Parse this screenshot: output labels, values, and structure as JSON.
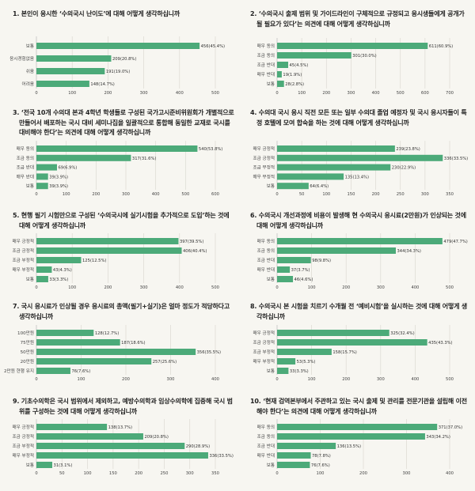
{
  "colors": {
    "bar": "#4caa79",
    "grid": "#dcdad2",
    "background": "#f7f6f1"
  },
  "chart_data": [
    {
      "type": "bar",
      "orientation": "horizontal",
      "title": "1. 본인이 응시한 ‘수의국시 난이도’에 대해 어떻게 생각하십니까",
      "categories": [
        "보통",
        "응시경험없음",
        "쉬움",
        "어려움"
      ],
      "values": [
        456,
        209,
        191,
        148
      ],
      "percents": [
        "45.4",
        "20.8",
        "19.0",
        "14.7"
      ],
      "xlim": [
        0,
        500
      ],
      "xticks": [
        0,
        100,
        200,
        300,
        400,
        500
      ],
      "grid": true
    },
    {
      "type": "bar",
      "orientation": "horizontal",
      "title": "2. ‘수의국시 출제 범위 및 가이드라인이 구체적으로 규정되고 응시생들에게 공개가 될 필요가 있다’는 의견에 대해 어떻게 생각하십니까",
      "categories": [
        "매우 동의",
        "조금 동의",
        "조금 반대",
        "매우 반대",
        "보통"
      ],
      "values": [
        611,
        301,
        45,
        19,
        28
      ],
      "percents": [
        "60.9",
        "30.0",
        "4.5",
        "1.9",
        "2.8"
      ],
      "xlim": [
        0,
        700
      ],
      "xticks": [
        0,
        100,
        200,
        300,
        400,
        500,
        600,
        700
      ],
      "grid": true
    },
    {
      "type": "bar",
      "orientation": "horizontal",
      "title": "3. ‘전국 10개 수의대 본과 4학년 학생들로 구성된 국가고시준비위원회가 개별적으로 만들어서 배포하는 국시 대비 세미나집을 일괄적으로 통합해 동일한 교재로 국시를 대비해야 한다’는 의견에 대해 어떻게 생각하십니까",
      "categories": [
        "매우 동의",
        "조금 동의",
        "조금 반대",
        "매우 반대",
        "보통"
      ],
      "values": [
        540,
        317,
        69,
        39,
        39
      ],
      "percents": [
        "53.8",
        "31.6",
        "6.9",
        "3.9",
        "3.9"
      ],
      "xlim": [
        0,
        600
      ],
      "xticks": [
        0,
        100,
        200,
        300,
        400,
        500,
        600
      ],
      "grid": true
    },
    {
      "type": "bar",
      "orientation": "horizontal",
      "title": "4. 수의대 국시 응시 직전 모든 또는 일부 수의대 졸업 예정자 및 국시 응시자들이 특정 호텔에 모여 합숙을 하는 것에 대해 어떻게 생각하십니까",
      "categories": [
        "매우 긍정적",
        "조금 긍정적",
        "조금 부정적",
        "매우 부정적",
        "보통"
      ],
      "values": [
        239,
        336,
        230,
        135,
        64
      ],
      "percents": [
        "23.8",
        "33.5",
        "22.9",
        "13.4",
        "6.4"
      ],
      "xlim": [
        0,
        350
      ],
      "xticks": [
        0,
        50,
        100,
        150,
        200,
        250,
        300,
        350
      ],
      "grid": true
    },
    {
      "type": "bar",
      "orientation": "horizontal",
      "title": "5. 현행 필기 시험만으로 구성된 ‘수의국시에 실기시험을 추가적으로 도입’하는 것에 대해 어떻게 생각하십니까",
      "categories": [
        "매우 긍정적",
        "조금 긍정적",
        "조금 부정적",
        "매우 부정적",
        "보통"
      ],
      "values": [
        397,
        406,
        125,
        43,
        33
      ],
      "percents": [
        "39.5",
        "40.4",
        "12.5",
        "4.3",
        "3.3"
      ],
      "xlim": [
        0,
        500
      ],
      "xticks": [
        0,
        100,
        200,
        300,
        400,
        500
      ],
      "grid": true
    },
    {
      "type": "bar",
      "orientation": "horizontal",
      "title": "6. 수의국시 개선과정에 비용이 발생해 현 수의국시 응시료(2만원)가 인상되는 것에 대해 어떻게 생각하십니까",
      "categories": [
        "매우 동의",
        "조금 동의",
        "조금 반대",
        "매우 반대",
        "보통"
      ],
      "values": [
        479,
        344,
        98,
        37,
        46
      ],
      "percents": [
        "47.7",
        "34.3",
        "9.8",
        "3.7",
        "4.6"
      ],
      "xlim": [
        0,
        500
      ],
      "xticks": [
        0,
        100,
        200,
        300,
        400,
        500
      ],
      "grid": true
    },
    {
      "type": "bar",
      "orientation": "horizontal",
      "title": "7. 국시 응시료가 인상될 경우 응시료의 총액(필기+실기)은 얼마 정도가 적당하다고 생각하십니까",
      "categories": [
        "100만원",
        "75만원",
        "50만원",
        "20만원",
        "2만원 현행 유지"
      ],
      "values": [
        128,
        187,
        356,
        257,
        76
      ],
      "percents": [
        "12.7",
        "18.6",
        "35.5",
        "25.6",
        "7.6"
      ],
      "xlim": [
        0,
        400
      ],
      "xticks": [
        0,
        100,
        200,
        300,
        400
      ],
      "grid": true
    },
    {
      "type": "bar",
      "orientation": "horizontal",
      "title": "8. 수의국시 본 시험을 치르기 수개월 전 ‘예비시험’을 실시하는 것에 대해 어떻게 생각하십니까",
      "categories": [
        "매우 긍정적",
        "조금 긍정적",
        "조금 부정적",
        "매우 부정적",
        "보통"
      ],
      "values": [
        325,
        435,
        158,
        53,
        33
      ],
      "percents": [
        "32.4",
        "43.3",
        "15.7",
        "5.3",
        "3.3"
      ],
      "xlim": [
        0,
        500
      ],
      "xticks": [
        0,
        100,
        200,
        300,
        400,
        500
      ],
      "grid": true
    },
    {
      "type": "bar",
      "orientation": "horizontal",
      "title": "9. 기초수의학은 국시 범위에서 제외하고, 예방수의학과 임상수의학에 집중해 국시 범위를 구성하는 것에 대해 어떻게 생각하십니까",
      "categories": [
        "매우 긍정적",
        "조금 긍정적",
        "조금 부정적",
        "매우 부정적",
        "보통"
      ],
      "values": [
        138,
        209,
        290,
        336,
        31
      ],
      "percents": [
        "13.7",
        "20.8",
        "28.9",
        "33.5",
        "3.1"
      ],
      "xlim": [
        0,
        350
      ],
      "xticks": [
        0,
        50,
        100,
        150,
        200,
        250,
        300,
        350
      ],
      "grid": true
    },
    {
      "type": "bar",
      "orientation": "horizontal",
      "title": "10. ‘현재 검역본부에서 주관하고 있는 국시 출제 및 관리를 전문기관을 설립해 이전해야 한다’는 의견에 대해 어떻게 생각하십니까",
      "categories": [
        "매우 동의",
        "조금 동의",
        "조금 반대",
        "매우 반대",
        "보통"
      ],
      "values": [
        371,
        343,
        136,
        78,
        76
      ],
      "percents": [
        "37.0",
        "34.2",
        "13.5",
        "7.8",
        "7.6"
      ],
      "xlim": [
        0,
        400
      ],
      "xticks": [
        0,
        100,
        200,
        300,
        400
      ],
      "grid": true
    }
  ]
}
